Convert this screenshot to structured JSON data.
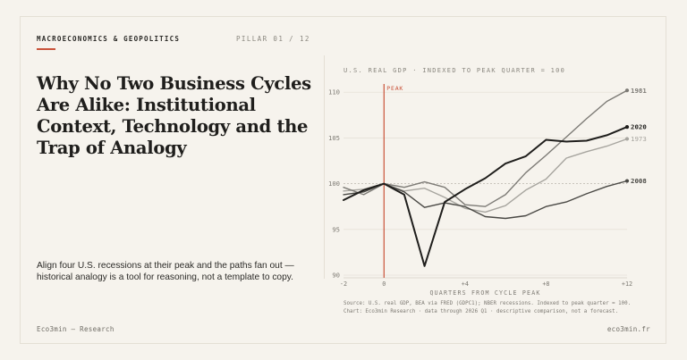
{
  "header": {
    "kicker": "MACROECONOMICS & GEOPOLITICS",
    "pillar": "PILLAR 01 / 12"
  },
  "article": {
    "title": "Why No Two Business Cycles Are Alike: Institutional Context, Technology and the Trap of Analogy",
    "description": "Align four U.S. recessions at their peak and the paths fan out — historical analogy is a tool for reasoning, not a template to copy."
  },
  "footer": {
    "left": "Eco3min — Research",
    "right": "eco3min.fr"
  },
  "colors": {
    "accent": "#c9533a",
    "series_2020": "#1f1e1c",
    "series_2008": "#4a4945",
    "series_1981": "#7d7b76",
    "series_1973": "#a7a59f"
  },
  "chart_data": {
    "type": "line",
    "title": "U.S. REAL GDP · INDEXED TO PEAK QUARTER = 100",
    "xlabel": "QUARTERS FROM CYCLE PEAK",
    "ylabel": "",
    "xlim": [
      -2,
      12
    ],
    "ylim": [
      90,
      111
    ],
    "x_ticks": [
      -2,
      0,
      4,
      8,
      12
    ],
    "x_tick_labels": [
      "-2",
      "0",
      "+4",
      "+8",
      "+12"
    ],
    "y_ticks": [
      90,
      95,
      100,
      105,
      110
    ],
    "grid": true,
    "reference_line": {
      "x": 0,
      "label": "PEAK"
    },
    "series": [
      {
        "name": "1973",
        "x": [
          -2,
          -1,
          0,
          1,
          2,
          3,
          4,
          5,
          6,
          7,
          8,
          9,
          10,
          11,
          12
        ],
        "values": [
          99.2,
          99.4,
          100.0,
          99.2,
          99.5,
          98.5,
          97.3,
          96.9,
          97.6,
          99.3,
          100.5,
          102.8,
          103.5,
          104.1,
          104.9
        ]
      },
      {
        "name": "1981",
        "x": [
          -2,
          -1,
          0,
          1,
          2,
          3,
          4,
          5,
          6,
          7,
          8,
          9,
          10,
          11,
          12
        ],
        "values": [
          99.6,
          98.8,
          100.0,
          99.6,
          100.2,
          99.6,
          97.7,
          97.5,
          98.8,
          101.2,
          103.1,
          105.1,
          107.1,
          109.0,
          110.2
        ]
      },
      {
        "name": "2008",
        "x": [
          -2,
          -1,
          0,
          1,
          2,
          3,
          4,
          5,
          6,
          7,
          8,
          9,
          10,
          11,
          12
        ],
        "values": [
          98.8,
          99.1,
          100.0,
          99.1,
          97.4,
          97.9,
          97.5,
          96.4,
          96.2,
          96.5,
          97.5,
          98.0,
          98.9,
          99.7,
          100.3
        ]
      },
      {
        "name": "2020",
        "x": [
          -2,
          -1,
          0,
          1,
          2,
          3,
          4,
          5,
          6,
          7,
          8,
          9,
          10,
          11,
          12
        ],
        "values": [
          98.2,
          99.3,
          100.0,
          98.8,
          91.0,
          98.0,
          99.4,
          100.6,
          102.2,
          103.0,
          104.8,
          104.6,
          104.7,
          105.3,
          106.2
        ]
      }
    ],
    "source_lines": [
      "Source: U.S. real GDP, BEA via FRED (GDPC1); NBER recessions. Indexed to peak quarter = 100.",
      "Chart: Eco3min Research · data through 2026 Q1 · descriptive comparison, not a forecast."
    ]
  }
}
